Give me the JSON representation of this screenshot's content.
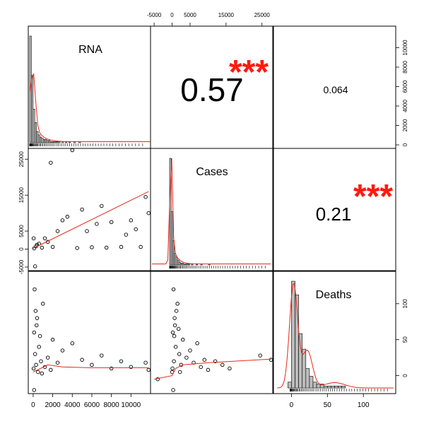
{
  "chart_data": {
    "type": "pairs",
    "variables": [
      "RNA",
      "Cases",
      "Deaths"
    ],
    "correlations": [
      {
        "pair": [
          "RNA",
          "Cases"
        ],
        "r": "0.57",
        "stars": "***"
      },
      {
        "pair": [
          "RNA",
          "Deaths"
        ],
        "r": "0.064",
        "stars": ""
      },
      {
        "pair": [
          "Cases",
          "Deaths"
        ],
        "r": "0.21",
        "stars": "***"
      }
    ],
    "axes": {
      "RNA": {
        "range": [
          -500,
          12000
        ],
        "ticks": [
          "0",
          "2000",
          "4000",
          "6000",
          "8000",
          "10000"
        ]
      },
      "Cases": {
        "range": [
          -6000,
          28000
        ],
        "ticks": [
          "-5000",
          "0",
          "5000",
          "15000",
          "25000"
        ]
      },
      "Deaths": {
        "range": [
          -25,
          145
        ],
        "ticks": [
          "0",
          "50",
          "100"
        ]
      }
    },
    "histograms": {
      "RNA": {
        "density_axis_ticks": [
          "0",
          "2000",
          "4000",
          "6000",
          "8000",
          "10000"
        ]
      },
      "Cases": {},
      "Deaths": {
        "bin_width": 5,
        "bins_from": -5,
        "counts": [
          3,
          55,
          48,
          28,
          20,
          10,
          6,
          3,
          2,
          2,
          1,
          1,
          1,
          1,
          1,
          1,
          0,
          0,
          0,
          0,
          0,
          0,
          0,
          0,
          0,
          0,
          0,
          0,
          0,
          0
        ]
      }
    },
    "scatter": {
      "RNA_vs_Cases": {
        "points": [
          [
            100,
            200
          ],
          [
            300,
            800
          ],
          [
            600,
            1500
          ],
          [
            900,
            400
          ],
          [
            1200,
            3000
          ],
          [
            1500,
            2000
          ],
          [
            1800,
            24000
          ],
          [
            2000,
            600
          ],
          [
            2500,
            5000
          ],
          [
            3000,
            8000
          ],
          [
            3500,
            9000
          ],
          [
            4000,
            27500
          ],
          [
            4500,
            300
          ],
          [
            5000,
            11000
          ],
          [
            5500,
            5000
          ],
          [
            6000,
            500
          ],
          [
            6500,
            7000
          ],
          [
            7000,
            12000
          ],
          [
            7500,
            400
          ],
          [
            8000,
            7500
          ],
          [
            9000,
            600
          ],
          [
            9500,
            4000
          ],
          [
            10000,
            8000
          ],
          [
            10500,
            5500
          ],
          [
            11000,
            600
          ],
          [
            11500,
            14500
          ],
          [
            11800,
            10000
          ],
          [
            200,
            -4800
          ],
          [
            50,
            3000
          ],
          [
            400,
            1200
          ]
        ],
        "fit": [
          [
            0,
            200
          ],
          [
            11800,
            16000
          ]
        ]
      },
      "RNA_vs_Deaths": {
        "points": [
          [
            50,
            10
          ],
          [
            100,
            60
          ],
          [
            150,
            120
          ],
          [
            200,
            30
          ],
          [
            300,
            15
          ],
          [
            400,
            80
          ],
          [
            500,
            5
          ],
          [
            600,
            40
          ],
          [
            800,
            20
          ],
          [
            1000,
            100
          ],
          [
            1200,
            12
          ],
          [
            1500,
            25
          ],
          [
            1800,
            8
          ],
          [
            2000,
            50
          ],
          [
            2500,
            18
          ],
          [
            3000,
            35
          ],
          [
            4000,
            45
          ],
          [
            5000,
            22
          ],
          [
            6000,
            15
          ],
          [
            7000,
            28
          ],
          [
            8000,
            10
          ],
          [
            9000,
            20
          ],
          [
            10000,
            12
          ],
          [
            11500,
            18
          ],
          [
            11800,
            8
          ],
          [
            100,
            -20
          ],
          [
            250,
            90
          ],
          [
            350,
            70
          ],
          [
            700,
            55
          ],
          [
            900,
            3
          ]
        ],
        "fit": [
          [
            0,
            5
          ],
          [
            1500,
            15
          ],
          [
            3000,
            12
          ],
          [
            6000,
            11
          ],
          [
            11800,
            11
          ]
        ]
      },
      "Cases_vs_Deaths": {
        "points": [
          [
            0,
            5
          ],
          [
            200,
            60
          ],
          [
            400,
            120
          ],
          [
            500,
            20
          ],
          [
            700,
            80
          ],
          [
            1000,
            40
          ],
          [
            1500,
            100
          ],
          [
            2000,
            30
          ],
          [
            2500,
            15
          ],
          [
            3000,
            50
          ],
          [
            4000,
            25
          ],
          [
            5000,
            35
          ],
          [
            6000,
            18
          ],
          [
            7000,
            45
          ],
          [
            8000,
            12
          ],
          [
            9000,
            22
          ],
          [
            10000,
            8
          ],
          [
            12000,
            20
          ],
          [
            14000,
            15
          ],
          [
            16000,
            10
          ],
          [
            24500,
            28
          ],
          [
            27500,
            22
          ],
          [
            -4000,
            -5
          ],
          [
            300,
            -20
          ],
          [
            800,
            70
          ],
          [
            1200,
            90
          ],
          [
            600,
            55
          ],
          [
            100,
            10
          ],
          [
            1800,
            65
          ],
          [
            2200,
            5
          ]
        ],
        "fit": [
          [
            -5000,
            -5
          ],
          [
            0,
            0
          ],
          [
            1000,
            10
          ],
          [
            3000,
            15
          ],
          [
            10000,
            18
          ],
          [
            27500,
            23
          ]
        ]
      }
    }
  }
}
